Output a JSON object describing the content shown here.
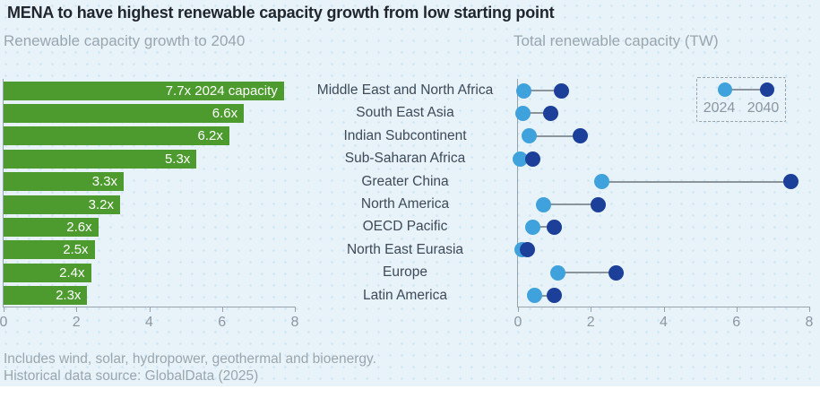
{
  "title": "MENA to have highest renewable capacity growth from low starting point",
  "panels": {
    "left_subtitle": "Renewable capacity growth to 2040",
    "right_subtitle": "Total renewable capacity (TW)"
  },
  "legend": {
    "labels": [
      "2024",
      "2040"
    ]
  },
  "footnote_line1": "Includes wind, solar, hydropower, geothermal and bioenergy.",
  "footnote_line2": "Historical data source: GlobalData (2025)",
  "colors": {
    "background": "#e7f2f9",
    "title": "#20262c",
    "subtitle": "#9aa6ae",
    "region_text": "#3e4a57",
    "bar_green": "#4d9b2f",
    "bar_label": "#ffffff",
    "dot_2024": "#3fa2dc",
    "dot_2040": "#1c3f99",
    "line": "#8b949b",
    "axis": "#97a2aa",
    "tick_text": "#8c96a0"
  },
  "chart_data": [
    {
      "type": "bar",
      "orientation": "horizontal",
      "title": "Renewable capacity growth to 2040",
      "categories": [
        "Middle East and North Africa",
        "South East Asia",
        "Indian Subcontinent",
        "Sub-Saharan Africa",
        "Greater China",
        "North America",
        "OECD Pacific",
        "North East Eurasia",
        "Europe",
        "Latin America"
      ],
      "values": [
        7.7,
        6.6,
        6.2,
        5.3,
        3.3,
        3.2,
        2.6,
        2.5,
        2.4,
        2.3
      ],
      "bar_labels": [
        "7.7x 2024 capacity",
        "6.6x",
        "6.2x",
        "5.3x",
        "3.3x",
        "3.2x",
        "2.6x",
        "2.5x",
        "2.4x",
        "2.3x"
      ],
      "xlabel": "",
      "ylabel": "",
      "xlim": [
        0,
        8
      ],
      "xticks": [
        0,
        2,
        4,
        6,
        8
      ],
      "grid": false
    },
    {
      "type": "scatter",
      "subtype": "dumbbell",
      "title": "Total renewable capacity (TW)",
      "categories": [
        "Middle East and North Africa",
        "South East Asia",
        "Indian Subcontinent",
        "Sub-Saharan Africa",
        "Greater China",
        "North America",
        "OECD Pacific",
        "North East Eurasia",
        "Europe",
        "Latin America"
      ],
      "series": [
        {
          "name": "2024",
          "values": [
            0.15,
            0.14,
            0.3,
            0.07,
            2.3,
            0.7,
            0.4,
            0.1,
            1.1,
            0.45
          ]
        },
        {
          "name": "2040",
          "values": [
            1.2,
            0.9,
            1.7,
            0.4,
            7.5,
            2.2,
            1.0,
            0.25,
            2.7,
            1.0
          ]
        }
      ],
      "xlabel": "",
      "ylabel": "",
      "xlim": [
        0,
        8
      ],
      "xticks": [
        0,
        2,
        4,
        6,
        8
      ],
      "legend_position": "top-right",
      "grid": false
    }
  ]
}
